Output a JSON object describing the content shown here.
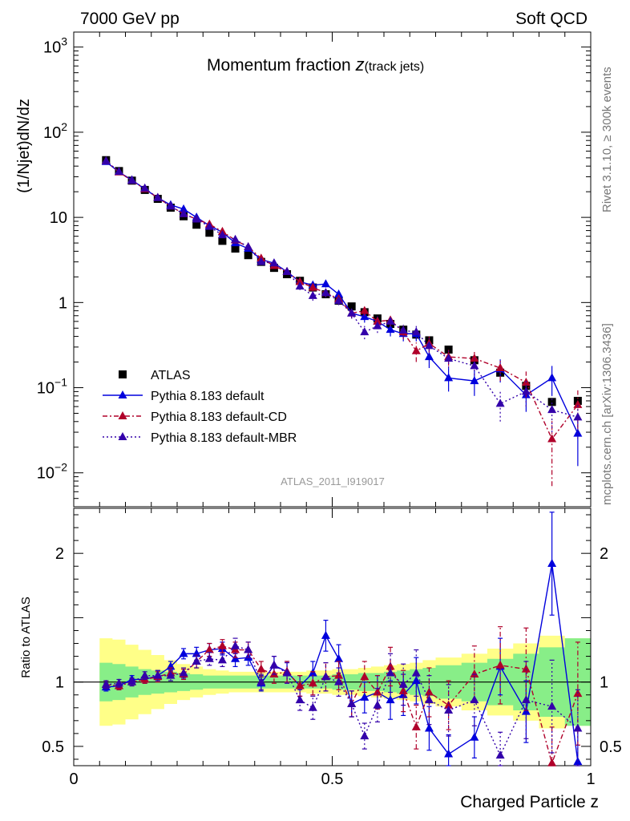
{
  "header": {
    "left": "7000 GeV pp",
    "right": "Soft QCD"
  },
  "side_labels": {
    "rivet": "Rivet 3.1.10, ≥ 300k events",
    "mcplots": "mcplots.cern.ch [arXiv:1306.3436]"
  },
  "chart_data": [
    {
      "type": "scatter",
      "title": "Momentum fraction ",
      "title_math": "z",
      "title_sub": "(track jets)",
      "ylabel": "(1/Njet)dN/dz",
      "analysis_tag": "ATLAS_2011_I919017",
      "yscale": "log",
      "xlim": [
        0,
        1
      ],
      "ylim": [
        0.004,
        1500
      ],
      "ytick_labels": [
        {
          "base": "10",
          "exp": "−2",
          "v": 0.01
        },
        {
          "base": "10",
          "exp": "−1",
          "v": 0.1
        },
        {
          "base": "1",
          "exp": "",
          "v": 1
        },
        {
          "base": "10",
          "exp": "",
          "v": 10
        },
        {
          "base": "10",
          "exp": "2",
          "v": 100
        },
        {
          "base": "10",
          "exp": "3",
          "v": 1000
        }
      ],
      "x": [
        0.0625,
        0.0875,
        0.1125,
        0.1375,
        0.1625,
        0.1875,
        0.2125,
        0.2375,
        0.2625,
        0.2875,
        0.3125,
        0.3375,
        0.3625,
        0.3875,
        0.4125,
        0.4375,
        0.4625,
        0.4875,
        0.5125,
        0.5375,
        0.5625,
        0.5875,
        0.6125,
        0.6375,
        0.6625,
        0.6875,
        0.725,
        0.775,
        0.825,
        0.875,
        0.925,
        0.975
      ],
      "legend": [
        "ATLAS",
        "Pythia 8.183 default",
        "Pythia 8.183 default-CD",
        "Pythia 8.183 default-MBR"
      ],
      "series": [
        {
          "name": "ATLAS",
          "color": "#000000",
          "marker": "square",
          "line": "none",
          "values": [
            47,
            35,
            27,
            21,
            16.5,
            13,
            10.3,
            8.2,
            6.6,
            5.3,
            4.3,
            3.6,
            3.0,
            2.55,
            2.15,
            1.8,
            1.5,
            1.25,
            1.05,
            0.9,
            0.77,
            0.65,
            0.56,
            0.48,
            0.42,
            0.36,
            0.28,
            0.21,
            0.15,
            0.105,
            0.068,
            0.07
          ]
        },
        {
          "name": "Pythia 8.183 default",
          "color": "#0000dd",
          "marker": "triangle",
          "line": "solid",
          "values": [
            45,
            34,
            27.5,
            21.5,
            17,
            14,
            12.5,
            10,
            8.0,
            6.7,
            5.0,
            4.3,
            3.2,
            2.9,
            2.3,
            1.75,
            1.6,
            1.65,
            1.25,
            0.75,
            0.68,
            0.6,
            0.48,
            0.43,
            0.43,
            0.23,
            0.13,
            0.12,
            0.165,
            0.082,
            0.13,
            0.029
          ],
          "errors": [
            1.5,
            1.2,
            1.0,
            0.8,
            0.7,
            0.6,
            0.5,
            0.4,
            0.35,
            0.3,
            0.3,
            0.25,
            0.2,
            0.2,
            0.18,
            0.15,
            0.15,
            0.15,
            0.12,
            0.1,
            0.1,
            0.09,
            0.08,
            0.08,
            0.08,
            0.06,
            0.04,
            0.04,
            0.05,
            0.03,
            0.05,
            0.017
          ]
        },
        {
          "name": "Pythia 8.183 default-CD",
          "color": "#b0002a",
          "marker": "triangle",
          "line": "dashdot",
          "values": [
            46,
            34,
            27,
            21.5,
            17,
            13.5,
            11,
            9.5,
            8.3,
            6.8,
            5.4,
            4.5,
            3.3,
            2.7,
            2.3,
            1.75,
            1.5,
            1.3,
            1.1,
            0.75,
            0.8,
            0.6,
            0.62,
            0.45,
            0.27,
            0.33,
            0.23,
            0.22,
            0.17,
            0.115,
            0.025,
            0.063
          ],
          "errors": [
            1.5,
            1.2,
            1.0,
            0.8,
            0.7,
            0.6,
            0.5,
            0.4,
            0.35,
            0.3,
            0.3,
            0.25,
            0.2,
            0.2,
            0.18,
            0.15,
            0.15,
            0.15,
            0.12,
            0.1,
            0.1,
            0.09,
            0.09,
            0.08,
            0.07,
            0.07,
            0.05,
            0.05,
            0.05,
            0.04,
            0.018,
            0.03
          ]
        },
        {
          "name": "Pythia 8.183 default-MBR",
          "color": "#3300aa",
          "marker": "triangle",
          "line": "dotted",
          "values": [
            46,
            34.5,
            27,
            22,
            17,
            13.5,
            11,
            9.5,
            7.8,
            6.2,
            5.5,
            4.5,
            3.0,
            2.9,
            2.3,
            1.55,
            1.2,
            1.3,
            1.05,
            0.75,
            0.45,
            0.53,
            0.6,
            0.47,
            0.45,
            0.31,
            0.22,
            0.18,
            0.065,
            0.09,
            0.055,
            0.045
          ],
          "errors": [
            1.5,
            1.2,
            1.0,
            0.8,
            0.7,
            0.6,
            0.5,
            0.4,
            0.35,
            0.3,
            0.3,
            0.25,
            0.2,
            0.2,
            0.18,
            0.15,
            0.15,
            0.15,
            0.12,
            0.1,
            0.08,
            0.09,
            0.09,
            0.08,
            0.08,
            0.07,
            0.05,
            0.04,
            0.025,
            0.03,
            0.025,
            0.02
          ]
        }
      ]
    },
    {
      "type": "line",
      "xlabel": "Charged Particle z",
      "ylabel": "Ratio to ATLAS",
      "xlim": [
        0,
        1
      ],
      "ylim": [
        0.35,
        2.35
      ],
      "xtick_labels": [
        {
          "v": 0,
          "t": "0"
        },
        {
          "v": 0.5,
          "t": "0.5"
        },
        {
          "v": 1,
          "t": "1"
        }
      ],
      "ytick_labels": [
        {
          "v": 0.5,
          "t": "0.5"
        },
        {
          "v": 1,
          "t": "1"
        },
        {
          "v": 2,
          "t": "2"
        }
      ],
      "x_edges": [
        0.05,
        0.075,
        0.1,
        0.125,
        0.15,
        0.175,
        0.2,
        0.225,
        0.25,
        0.275,
        0.3,
        0.325,
        0.35,
        0.375,
        0.4,
        0.425,
        0.45,
        0.475,
        0.5,
        0.525,
        0.55,
        0.575,
        0.6,
        0.625,
        0.65,
        0.675,
        0.7,
        0.75,
        0.8,
        0.85,
        0.9,
        0.95,
        1.0
      ],
      "band_yellow": [
        0.34,
        0.33,
        0.29,
        0.25,
        0.21,
        0.17,
        0.14,
        0.12,
        0.1,
        0.09,
        0.08,
        0.08,
        0.08,
        0.08,
        0.08,
        0.08,
        0.09,
        0.09,
        0.1,
        0.1,
        0.11,
        0.12,
        0.13,
        0.14,
        0.15,
        0.17,
        0.19,
        0.22,
        0.26,
        0.3,
        0.36,
        0.34
      ],
      "band_green": [
        0.15,
        0.14,
        0.12,
        0.1,
        0.09,
        0.08,
        0.07,
        0.06,
        0.05,
        0.05,
        0.05,
        0.05,
        0.05,
        0.05,
        0.05,
        0.05,
        0.05,
        0.05,
        0.06,
        0.06,
        0.07,
        0.07,
        0.08,
        0.09,
        0.1,
        0.11,
        0.13,
        0.15,
        0.18,
        0.22,
        0.27,
        0.34
      ],
      "reference": 1,
      "series": [
        {
          "name": "Pythia 8.183 default",
          "color": "#0000dd",
          "line": "solid",
          "values": [
            0.96,
            0.97,
            1.02,
            1.02,
            1.05,
            1.12,
            1.22,
            1.22,
            1.25,
            1.26,
            1.18,
            1.19,
            0.99,
            1.13,
            1.08,
            0.97,
            1.07,
            1.36,
            1.18,
            0.83,
            0.88,
            0.92,
            0.86,
            0.9,
            1.01,
            0.64,
            0.44,
            0.57,
            1.12,
            0.77,
            1.92,
            0.38
          ],
          "errors": [
            0.03,
            0.03,
            0.03,
            0.03,
            0.04,
            0.04,
            0.04,
            0.05,
            0.05,
            0.05,
            0.06,
            0.06,
            0.06,
            0.07,
            0.08,
            0.08,
            0.09,
            0.12,
            0.11,
            0.1,
            0.12,
            0.13,
            0.15,
            0.16,
            0.18,
            0.17,
            0.15,
            0.16,
            0.22,
            0.24,
            0.4,
            0.24
          ]
        },
        {
          "name": "Pythia 8.183 default-CD",
          "color": "#b0002a",
          "line": "dashdot",
          "values": [
            0.98,
            0.97,
            1.0,
            1.02,
            1.04,
            1.07,
            1.06,
            1.16,
            1.25,
            1.28,
            1.25,
            1.25,
            1.1,
            1.06,
            1.08,
            0.97,
            0.99,
            1.04,
            1.05,
            0.83,
            1.04,
            0.92,
            1.12,
            0.93,
            0.65,
            0.92,
            0.82,
            1.06,
            1.13,
            1.1,
            0.37,
            0.91
          ],
          "errors": [
            0.03,
            0.03,
            0.03,
            0.03,
            0.04,
            0.04,
            0.04,
            0.05,
            0.05,
            0.05,
            0.06,
            0.06,
            0.06,
            0.07,
            0.08,
            0.08,
            0.09,
            0.11,
            0.11,
            0.1,
            0.12,
            0.13,
            0.15,
            0.16,
            0.17,
            0.19,
            0.19,
            0.22,
            0.3,
            0.32,
            0.28,
            0.4
          ]
        },
        {
          "name": "Pythia 8.183 default-MBR",
          "color": "#3300aa",
          "line": "dotted",
          "values": [
            0.98,
            0.99,
            1.0,
            1.05,
            1.05,
            1.05,
            1.07,
            1.16,
            1.18,
            1.17,
            1.28,
            1.25,
            1.0,
            1.13,
            1.07,
            0.86,
            0.8,
            1.04,
            1.0,
            0.83,
            0.58,
            0.82,
            1.07,
            0.98,
            1.07,
            0.86,
            0.78,
            0.86,
            0.43,
            0.86,
            0.81,
            0.64
          ],
          "errors": [
            0.03,
            0.03,
            0.03,
            0.03,
            0.04,
            0.04,
            0.04,
            0.05,
            0.05,
            0.05,
            0.06,
            0.06,
            0.06,
            0.07,
            0.08,
            0.08,
            0.09,
            0.11,
            0.11,
            0.1,
            0.1,
            0.13,
            0.15,
            0.16,
            0.18,
            0.19,
            0.2,
            0.2,
            0.18,
            0.3,
            0.36,
            0.3
          ]
        }
      ]
    }
  ]
}
